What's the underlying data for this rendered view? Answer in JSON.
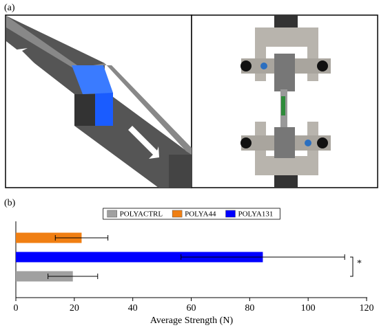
{
  "panel_labels": [
    "(a)",
    "(b)"
  ],
  "chart_data": {
    "type": "bar",
    "orientation": "horizontal",
    "xlabel": "Average Strength (N)",
    "categories": [
      null,
      null,
      null
    ],
    "series": [
      {
        "name": "POLYACTRL",
        "color": "#a0a0a0",
        "values": [
          null,
          null,
          19.5
        ],
        "errors": [
          null,
          null,
          8.5
        ]
      },
      {
        "name": "POLYA44",
        "color": "#f07f13",
        "values": [
          22.5,
          null,
          null
        ],
        "errors": [
          9,
          null,
          null
        ]
      },
      {
        "name": "POLYA131",
        "color": "#0000ff",
        "values": [
          null,
          84.5,
          null
        ],
        "errors": [
          null,
          28,
          null
        ]
      }
    ],
    "xlim": [
      0,
      120
    ],
    "xticks": [
      0,
      20,
      40,
      60,
      80,
      100,
      120
    ],
    "annotation": "*"
  }
}
